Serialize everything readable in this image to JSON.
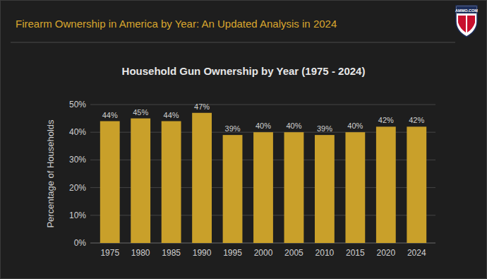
{
  "header": {
    "title": "Firearm Ownership in America by Year: An Updated Analysis in 2024",
    "logo": "AMMO.COM"
  },
  "chart_data": {
    "type": "bar",
    "title": "Household Gun Ownership by Year (1975 - 2024)",
    "y_label": "Percentage of Households",
    "categories": [
      "1975",
      "1980",
      "1985",
      "1990",
      "1995",
      "2000",
      "2005",
      "2010",
      "2015",
      "2020",
      "2024"
    ],
    "values": [
      44,
      45,
      44,
      47,
      39,
      40,
      40,
      39,
      40,
      42,
      42
    ],
    "value_labels": [
      "44%",
      "45%",
      "44%",
      "47%",
      "39%",
      "40%",
      "40%",
      "39%",
      "40%",
      "42%",
      "42%"
    ],
    "color": "#c9a02a",
    "ylim": [
      0,
      50
    ],
    "yticks": [
      {
        "value": 0,
        "label": "0%"
      },
      {
        "value": 10,
        "label": "10%"
      },
      {
        "value": 20,
        "label": "20%"
      },
      {
        "value": 30,
        "label": "30%"
      },
      {
        "value": 40,
        "label": "40%"
      },
      {
        "value": 50,
        "label": "50%"
      }
    ],
    "grid": true,
    "data_labels": true
  }
}
